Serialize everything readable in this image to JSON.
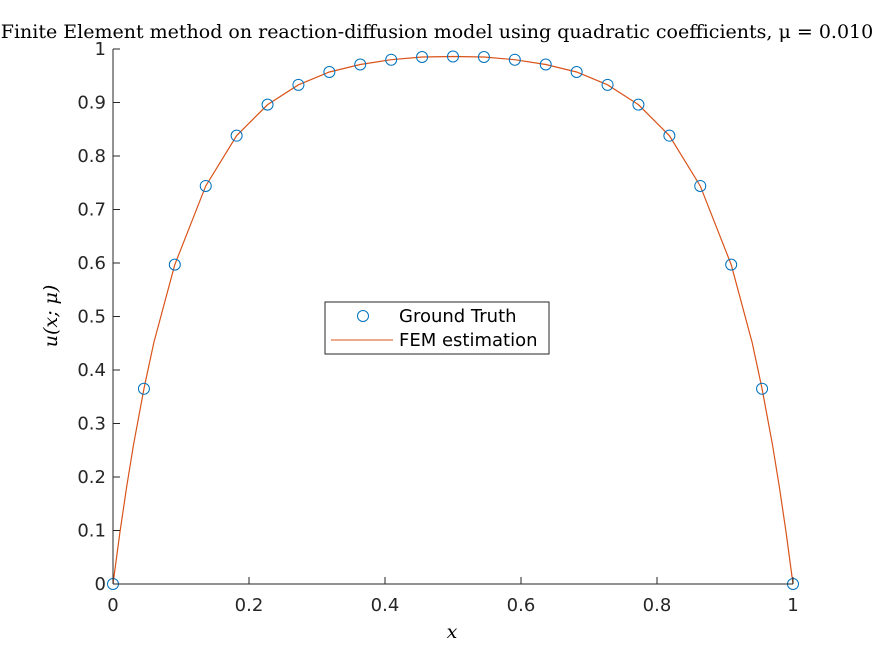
{
  "chart_data": {
    "type": "line",
    "title": "Finite Element method on reaction-diffusion model using quadratic coefficients, μ = 0.010",
    "xlabel": "x",
    "ylabel": "u(x; μ)",
    "xlim": [
      0,
      1
    ],
    "ylim": [
      0,
      1
    ],
    "xticks": [
      0,
      0.2,
      0.4,
      0.6,
      0.8,
      1
    ],
    "xtick_labels": [
      "0",
      "0.2",
      "0.4",
      "0.6",
      "0.8",
      "1"
    ],
    "yticks": [
      0,
      0.1,
      0.2,
      0.3,
      0.4,
      0.5,
      0.6,
      0.7,
      0.8,
      0.9,
      1
    ],
    "ytick_labels": [
      "0",
      "0.1",
      "0.2",
      "0.3",
      "0.4",
      "0.5",
      "0.6",
      "0.7",
      "0.8",
      "0.9",
      "1"
    ],
    "grid": false,
    "legend_placement": "center",
    "series": [
      {
        "name": "Ground Truth",
        "style": "markers",
        "marker": "circle",
        "color": "#0072BD",
        "x": [
          0,
          0.0455,
          0.0909,
          0.1364,
          0.1818,
          0.2273,
          0.2727,
          0.3182,
          0.3636,
          0.4091,
          0.4545,
          0.5,
          0.5455,
          0.5909,
          0.6364,
          0.6818,
          0.7273,
          0.7727,
          0.8182,
          0.8636,
          0.9091,
          0.9545,
          1
        ],
        "y": [
          0,
          0.365,
          0.597,
          0.744,
          0.838,
          0.896,
          0.933,
          0.957,
          0.971,
          0.98,
          0.985,
          0.986,
          0.985,
          0.98,
          0.971,
          0.957,
          0.933,
          0.896,
          0.838,
          0.744,
          0.597,
          0.365,
          0
        ]
      },
      {
        "name": "FEM estimation",
        "style": "line",
        "color": "#D95319",
        "x": [
          0,
          0.01,
          0.02,
          0.03,
          0.0455,
          0.06,
          0.0909,
          0.1364,
          0.1818,
          0.2273,
          0.2727,
          0.3182,
          0.3636,
          0.4091,
          0.4545,
          0.5,
          0.5455,
          0.5909,
          0.6364,
          0.6818,
          0.7273,
          0.7727,
          0.8182,
          0.8636,
          0.9091,
          0.94,
          0.9545,
          0.97,
          0.98,
          0.99,
          1
        ],
        "y": [
          0,
          0.095,
          0.181,
          0.259,
          0.365,
          0.451,
          0.597,
          0.744,
          0.838,
          0.896,
          0.933,
          0.957,
          0.971,
          0.98,
          0.985,
          0.986,
          0.985,
          0.98,
          0.971,
          0.957,
          0.933,
          0.896,
          0.838,
          0.744,
          0.597,
          0.451,
          0.365,
          0.259,
          0.181,
          0.095,
          0
        ]
      }
    ]
  }
}
